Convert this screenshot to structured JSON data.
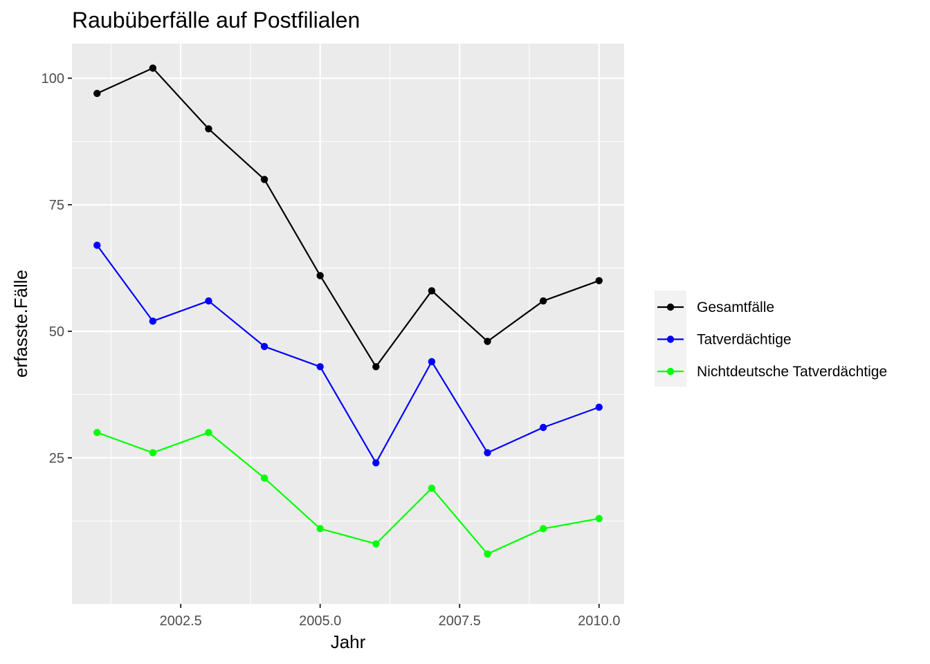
{
  "chart_data": {
    "type": "line",
    "title": "Raubüberfälle auf Postfilialen",
    "xlabel": "Jahr",
    "ylabel": "erfasste.Fälle",
    "xlim": [
      2000.55,
      2010.45
    ],
    "ylim": [
      -3.85,
      106.85
    ],
    "x_ticks": [
      2002.5,
      2005.0,
      2007.5,
      2010.0
    ],
    "x_tick_labels": [
      "2002.5",
      "2005.0",
      "2007.5",
      "2010.0"
    ],
    "y_ticks": [
      25,
      50,
      75,
      100
    ],
    "y_tick_labels": [
      "25",
      "50",
      "75",
      "100"
    ],
    "grid": true,
    "legend_position": "right",
    "x": [
      2001,
      2002,
      2003,
      2004,
      2005,
      2006,
      2007,
      2008,
      2009,
      2010
    ],
    "series": [
      {
        "name": "Gesamtfälle",
        "color": "#000000",
        "values": [
          97,
          102,
          90,
          80,
          61,
          43,
          58,
          48,
          56,
          60
        ]
      },
      {
        "name": "Tatverdächtige",
        "color": "#0000ff",
        "values": [
          67,
          52,
          56,
          47,
          43,
          24,
          44,
          26,
          31,
          35
        ]
      },
      {
        "name": "Nichtdeutsche Tatverdächtige",
        "color": "#00ff00",
        "values": [
          30,
          26,
          30,
          21,
          11,
          8,
          19,
          6,
          11,
          13
        ]
      }
    ]
  }
}
